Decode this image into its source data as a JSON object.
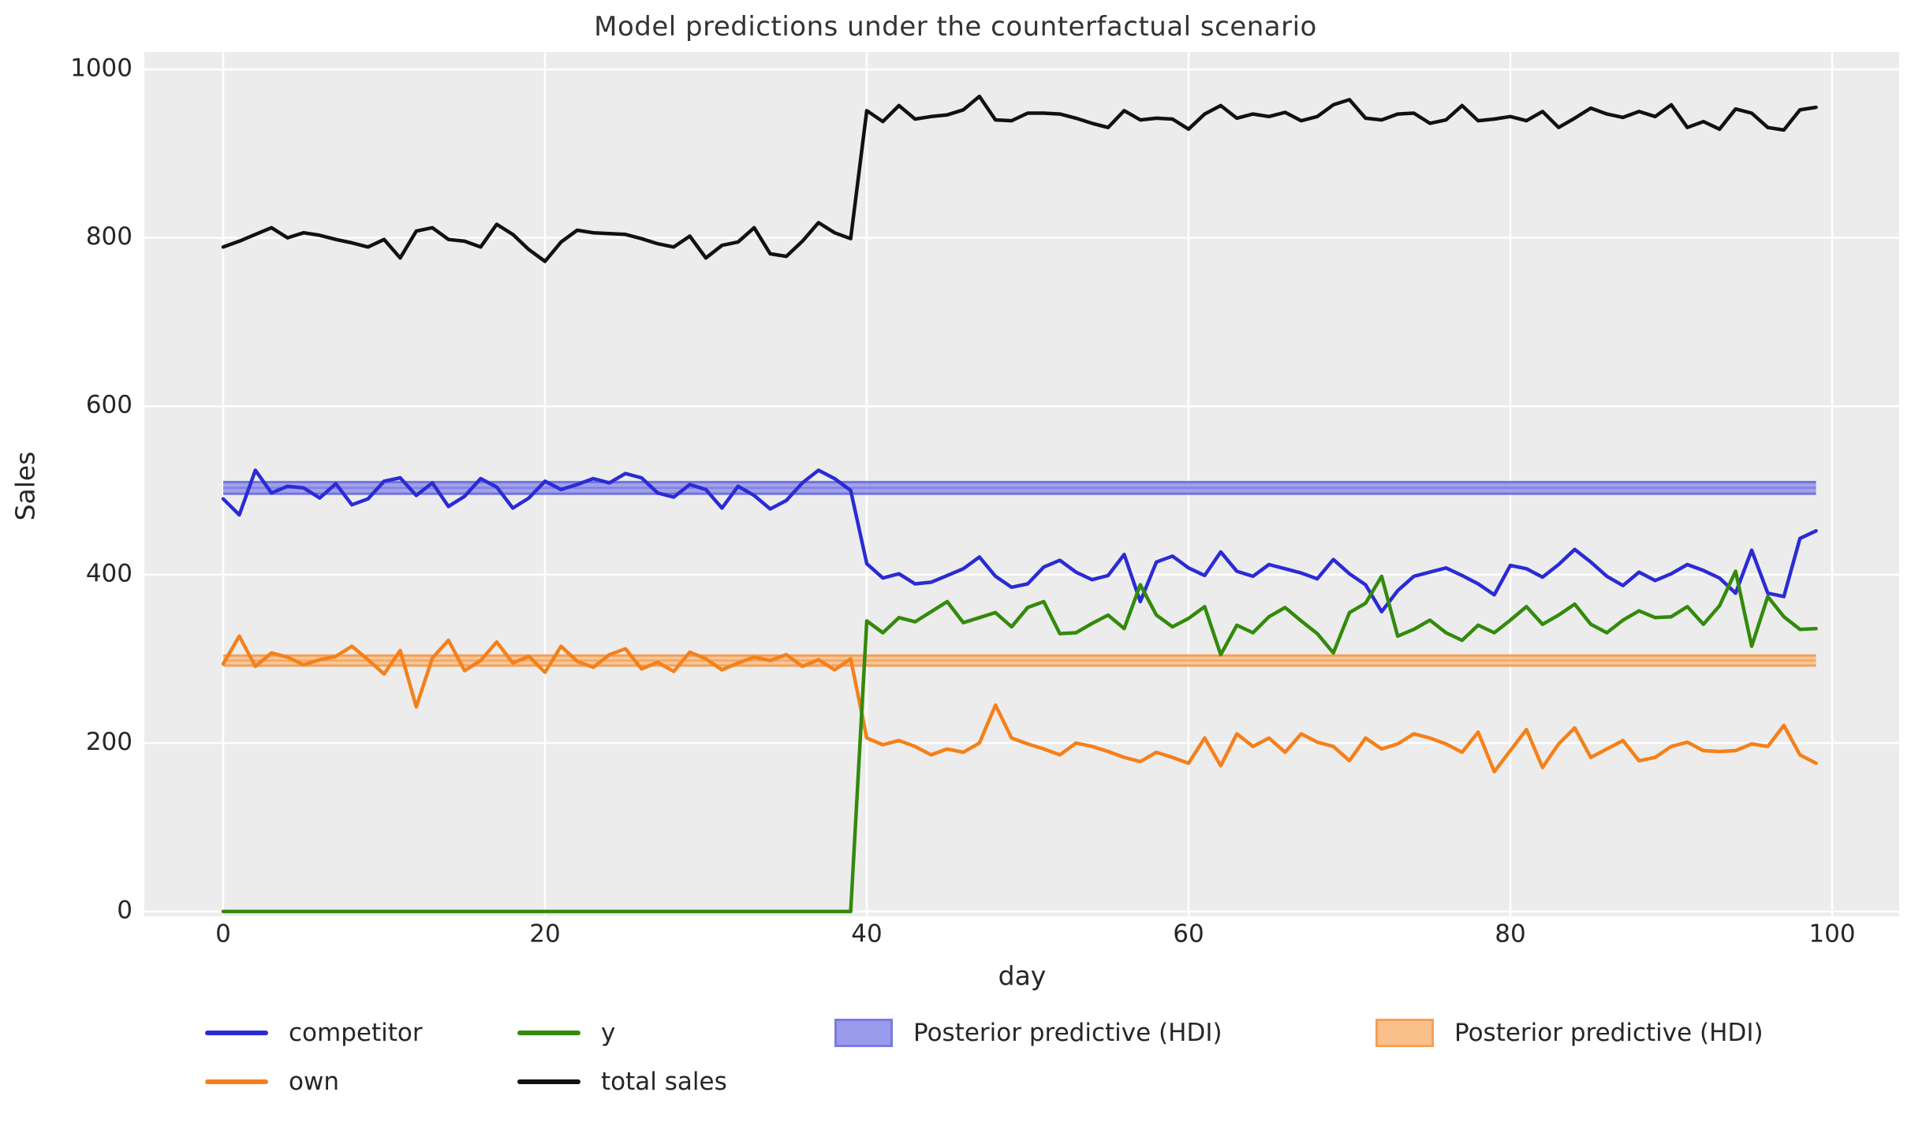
{
  "header": {
    "title": "Model predictions under the counterfactual scenario"
  },
  "chart_data": {
    "type": "line",
    "title": "Model predictions under the counterfactual scenario",
    "xlabel": "day",
    "ylabel": "Sales",
    "x_unit": "day index 0-99",
    "xlim": [
      -5,
      104
    ],
    "ylim": [
      -6,
      1026
    ],
    "grid": true,
    "background_color": "#ececec",
    "grid_color": "#ffffff",
    "text_color": "#262626",
    "xticks": [
      0,
      20,
      40,
      60,
      80,
      100
    ],
    "yticks": [
      0,
      200,
      400,
      600,
      800,
      1000
    ],
    "intervention_day": 40,
    "series": [
      {
        "name": "competitor",
        "color": "#2b2bd5",
        "values": [
          490,
          471,
          524,
          497,
          505,
          503,
          491,
          508,
          483,
          490,
          511,
          515,
          494,
          509,
          481,
          493,
          514,
          504,
          479,
          491,
          511,
          501,
          507,
          514,
          509,
          520,
          515,
          497,
          492,
          507,
          501,
          479,
          505,
          494,
          478,
          488,
          509,
          524,
          514,
          500,
          413,
          396,
          401,
          389,
          391,
          399,
          407,
          421,
          398,
          385,
          389,
          409,
          417,
          403,
          394,
          399,
          424,
          368,
          415,
          422,
          408,
          399,
          427,
          404,
          398,
          412,
          407,
          402,
          395,
          418,
          401,
          388,
          356,
          381,
          398,
          403,
          408,
          399,
          389,
          376,
          411,
          407,
          397,
          412,
          430,
          415,
          398,
          387,
          403,
          393,
          401,
          412,
          405,
          396,
          378,
          429,
          378,
          374,
          443,
          452
        ]
      },
      {
        "name": "own",
        "color": "#f5801a",
        "values": [
          294,
          327,
          291,
          307,
          302,
          293,
          299,
          303,
          315,
          299,
          282,
          310,
          243,
          301,
          322,
          286,
          298,
          320,
          295,
          303,
          284,
          315,
          297,
          290,
          305,
          312,
          288,
          296,
          285,
          308,
          300,
          287,
          295,
          302,
          298,
          305,
          291,
          299,
          287,
          300,
          206,
          198,
          203,
          196,
          186,
          193,
          189,
          200,
          245,
          206,
          199,
          193,
          186,
          200,
          196,
          190,
          183,
          178,
          189,
          183,
          176,
          206,
          173,
          211,
          196,
          206,
          189,
          211,
          201,
          196,
          179,
          206,
          193,
          199,
          211,
          206,
          199,
          189,
          213,
          166,
          191,
          216,
          171,
          199,
          218,
          183,
          193,
          203,
          179,
          183,
          196,
          201,
          191,
          190,
          191,
          199,
          196,
          221,
          186,
          176
        ]
      },
      {
        "name": "y",
        "color": "#338a0b",
        "values": [
          0,
          0,
          0,
          0,
          0,
          0,
          0,
          0,
          0,
          0,
          0,
          0,
          0,
          0,
          0,
          0,
          0,
          0,
          0,
          0,
          0,
          0,
          0,
          0,
          0,
          0,
          0,
          0,
          0,
          0,
          0,
          0,
          0,
          0,
          0,
          0,
          0,
          0,
          0,
          0,
          345,
          331,
          349,
          344,
          356,
          368,
          343,
          349,
          355,
          338,
          361,
          368,
          330,
          331,
          342,
          352,
          336,
          388,
          352,
          338,
          348,
          362,
          305,
          340,
          331,
          350,
          361,
          345,
          330,
          307,
          355,
          366,
          398,
          327,
          335,
          346,
          331,
          322,
          340,
          331,
          346,
          362,
          341,
          352,
          365,
          341,
          331,
          346,
          357,
          349,
          350,
          362,
          341,
          363,
          404,
          315,
          374,
          350,
          335,
          336
        ]
      },
      {
        "name": "total sales",
        "color": "#111111",
        "values": [
          789,
          796,
          804,
          812,
          800,
          806,
          803,
          798,
          794,
          789,
          798,
          776,
          808,
          812,
          798,
          796,
          789,
          816,
          804,
          786,
          772,
          795,
          809,
          806,
          805,
          804,
          799,
          793,
          789,
          802,
          776,
          791,
          795,
          812,
          781,
          778,
          796,
          818,
          806,
          799,
          951,
          938,
          957,
          941,
          944,
          946,
          952,
          968,
          940,
          939,
          948,
          948,
          947,
          942,
          936,
          931,
          951,
          940,
          942,
          941,
          929,
          947,
          957,
          942,
          947,
          944,
          949,
          939,
          944,
          958,
          964,
          942,
          940,
          947,
          948,
          936,
          940,
          957,
          939,
          941,
          944,
          939,
          950,
          931,
          942,
          954,
          947,
          943,
          950,
          944,
          958,
          931,
          938,
          929,
          953,
          948,
          931,
          928,
          952,
          955
        ]
      }
    ],
    "bands": [
      {
        "name": "posterior-predictive-hdi-competitor",
        "label": "Posterior predictive (HDI)",
        "lo": 496,
        "hi": 510,
        "mid": 503,
        "fill": "#8f8fe8",
        "edge": "#6a6adb",
        "mid_color": "#7d7de2",
        "x_start": 0,
        "x_end": 99
      },
      {
        "name": "posterior-predictive-hdi-own",
        "label": "Posterior predictive (HDI)",
        "lo": 292,
        "hi": 304,
        "mid": 298,
        "fill": "#f9bd85",
        "edge": "#f19b52",
        "mid_color": "#f3a35f",
        "x_start": 0,
        "x_end": 99
      }
    ],
    "legend": {
      "position": "below-axes",
      "entries": [
        {
          "label": "competitor",
          "swatch": "line",
          "color": "#2b2bd5",
          "row": 0,
          "col": 0
        },
        {
          "label": "own",
          "swatch": "line",
          "color": "#f5801a",
          "row": 1,
          "col": 0
        },
        {
          "label": "y",
          "swatch": "line",
          "color": "#338a0b",
          "row": 0,
          "col": 1
        },
        {
          "label": "total sales",
          "swatch": "line",
          "color": "#111111",
          "row": 1,
          "col": 1
        },
        {
          "label": "Posterior predictive (HDI)",
          "swatch": "patch",
          "fill": "#9a9aec",
          "edge": "#7a7ae0",
          "row": 0,
          "col": 2
        },
        {
          "label": "Posterior predictive (HDI)",
          "swatch": "patch",
          "fill": "#fbc08a",
          "edge": "#f5a055",
          "row": 0,
          "col": 3
        }
      ]
    }
  }
}
